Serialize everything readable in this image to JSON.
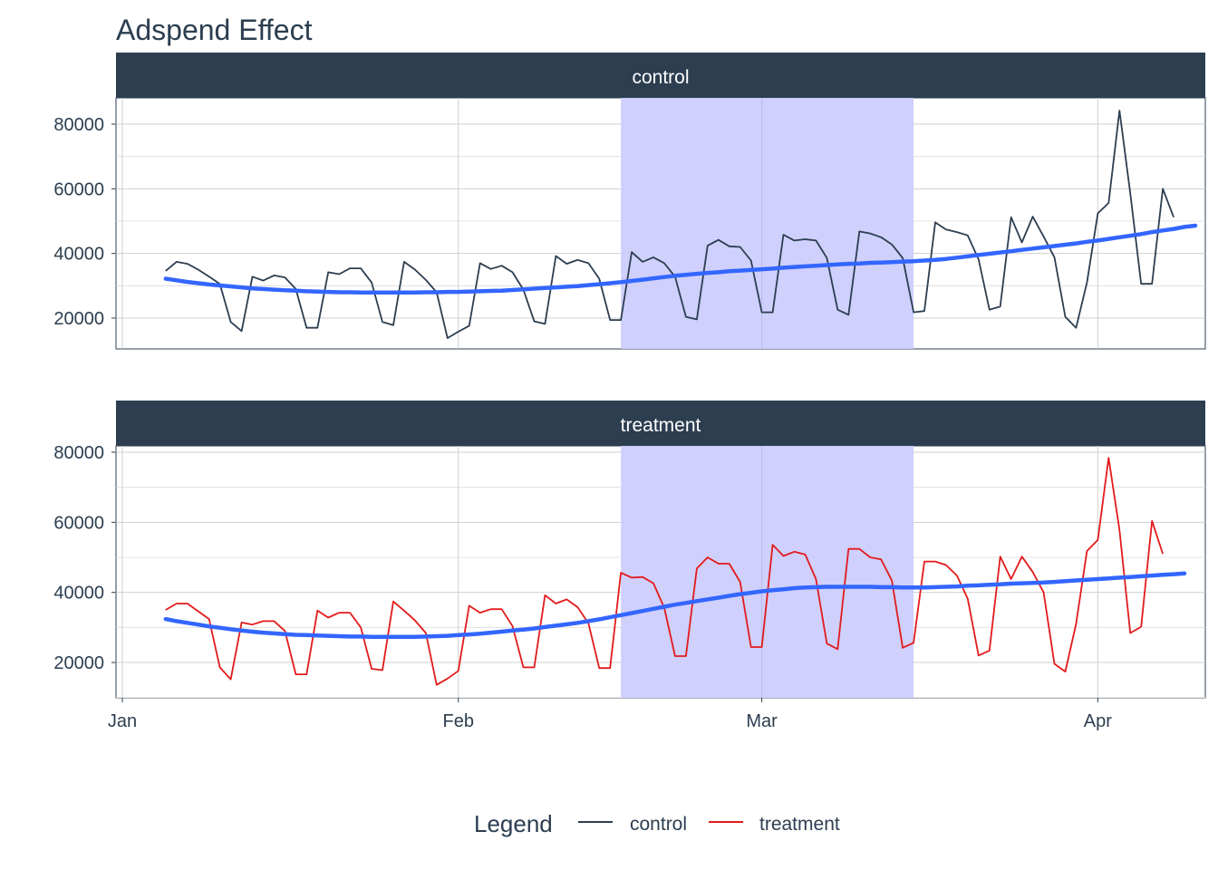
{
  "chart_data": {
    "type": "line",
    "title": "Adspend Effect",
    "x_ticks": [
      {
        "label": "Jan",
        "date": "2021-01-01"
      },
      {
        "label": "Feb",
        "date": "2021-02-01"
      },
      {
        "label": "Mar",
        "date": "2021-03-01"
      },
      {
        "label": "Apr",
        "date": "2021-04-01"
      }
    ],
    "x_range": [
      "2021-01-01",
      "2021-04-10"
    ],
    "y_ticks": [
      20000,
      40000,
      60000,
      80000
    ],
    "ylim": [
      10000,
      90000
    ],
    "highlight_period": [
      "2021-02-16",
      "2021-03-15"
    ],
    "highlight_color": "#cccdfc",
    "grid": true,
    "trend_color": "#3366ff",
    "panels": [
      {
        "name": "control",
        "color": "#2c3e50",
        "start_date": "2021-01-05",
        "values": [
          34600,
          37400,
          36800,
          35000,
          32800,
          30600,
          18800,
          16000,
          32800,
          31600,
          33200,
          32600,
          29000,
          17000,
          17000,
          34200,
          33600,
          35400,
          35400,
          31000,
          18800,
          17800,
          37400,
          35000,
          31800,
          28000,
          13800,
          15800,
          17600,
          37000,
          35200,
          36200,
          34200,
          28800,
          19000,
          18200,
          39200,
          36800,
          38000,
          37000,
          32200,
          19400,
          19400,
          40400,
          37400,
          38800,
          37000,
          32800,
          20400,
          19600,
          42400,
          44200,
          42200,
          42000,
          37800,
          21800,
          21800,
          45800,
          44000,
          44400,
          44000,
          38600,
          22600,
          21000,
          46800,
          46200,
          45000,
          42800,
          38600,
          21800,
          22200,
          49600,
          47400,
          46600,
          45600,
          38200,
          22600,
          23600,
          51200,
          43400,
          51400,
          45200,
          38800,
          20400,
          17000,
          31000,
          52400,
          55600,
          84200,
          58600,
          30600,
          30600,
          60000,
          51200
        ],
        "trend": [
          32200,
          31700,
          31200,
          30800,
          30400,
          30100,
          29800,
          29500,
          29200,
          29000,
          28800,
          28600,
          28500,
          28300,
          28200,
          28100,
          28000,
          28000,
          27900,
          27900,
          27900,
          27900,
          27900,
          27900,
          28000,
          28000,
          28100,
          28100,
          28200,
          28300,
          28400,
          28500,
          28700,
          28900,
          29100,
          29300,
          29500,
          29700,
          29900,
          30200,
          30500,
          30800,
          31100,
          31500,
          31900,
          32300,
          32700,
          33100,
          33400,
          33700,
          34000,
          34200,
          34500,
          34700,
          34900,
          35100,
          35300,
          35600,
          35800,
          36000,
          36200,
          36400,
          36600,
          36800,
          36900,
          37100,
          37200,
          37300,
          37500,
          37600,
          37800,
          38000,
          38300,
          38700,
          39100,
          39500,
          39900,
          40300,
          40700,
          41100,
          41500,
          41900,
          42300,
          42700,
          43100,
          43600,
          44000,
          44500,
          45000,
          45500,
          46000,
          46600,
          47100,
          47600,
          48200,
          48600
        ]
      },
      {
        "name": "treatment",
        "color": "#e31a1c",
        "start_date": "2021-01-05",
        "values": [
          35000,
          36800,
          36800,
          34600,
          32400,
          18600,
          15200,
          31400,
          30800,
          31800,
          31800,
          29000,
          16600,
          16600,
          34800,
          32800,
          34200,
          34200,
          30000,
          18200,
          17800,
          37400,
          34800,
          32000,
          28400,
          13600,
          15400,
          17600,
          36200,
          34200,
          35200,
          35200,
          30400,
          18600,
          18600,
          39200,
          36800,
          38000,
          35800,
          31200,
          18400,
          18400,
          45600,
          44200,
          44400,
          42600,
          35600,
          21800,
          21800,
          46800,
          50000,
          48200,
          48200,
          43000,
          24400,
          24400,
          53600,
          50400,
          51600,
          50800,
          43800,
          25400,
          23800,
          52400,
          52400,
          50000,
          49400,
          43400,
          24200,
          25600,
          48800,
          48800,
          47800,
          44800,
          38200,
          22000,
          23400,
          50200,
          43800,
          50200,
          45800,
          40000,
          19600,
          17400,
          31000,
          51800,
          55000,
          78400,
          57800,
          28400,
          30200,
          60400,
          51000
        ],
        "trend": [
          32400,
          31800,
          31300,
          30800,
          30300,
          29900,
          29500,
          29100,
          28800,
          28500,
          28300,
          28100,
          27900,
          27800,
          27700,
          27600,
          27500,
          27400,
          27400,
          27300,
          27300,
          27300,
          27300,
          27300,
          27400,
          27500,
          27600,
          27800,
          28000,
          28200,
          28500,
          28800,
          29100,
          29400,
          29700,
          30100,
          30500,
          30900,
          31300,
          31800,
          32300,
          32900,
          33500,
          34100,
          34700,
          35300,
          35900,
          36500,
          37000,
          37500,
          38000,
          38500,
          39000,
          39500,
          39900,
          40300,
          40600,
          40900,
          41200,
          41400,
          41500,
          41600,
          41600,
          41600,
          41600,
          41600,
          41500,
          41500,
          41400,
          41400,
          41400,
          41500,
          41600,
          41700,
          41900,
          42000,
          42200,
          42300,
          42500,
          42600,
          42700,
          42800,
          43000,
          43200,
          43400,
          43600,
          43800,
          44000,
          44200,
          44400,
          44600,
          44800,
          45000,
          45200,
          45400
        ]
      }
    ]
  },
  "legend": {
    "title": "Legend",
    "items": [
      {
        "label": "control",
        "color": "#2c3e50"
      },
      {
        "label": "treatment",
        "color": "#e31a1c"
      }
    ]
  }
}
